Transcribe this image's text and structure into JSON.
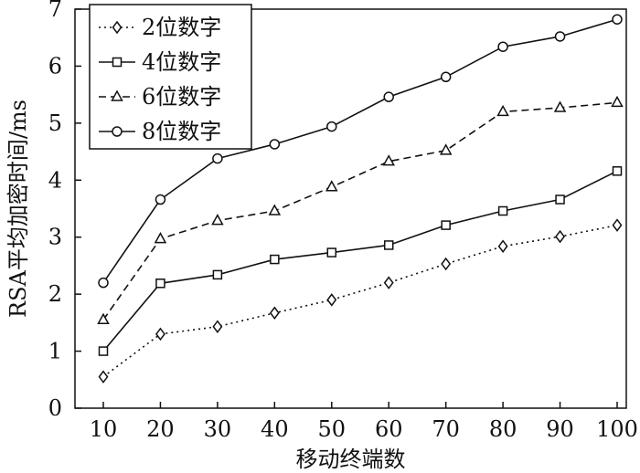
{
  "chart_data": {
    "type": "line",
    "xlabel": "移动终端数",
    "ylabel": "RSA平均加密时间/ms",
    "x": [
      10,
      20,
      30,
      40,
      50,
      60,
      70,
      80,
      90,
      100
    ],
    "xlim": [
      10,
      100
    ],
    "ylim": [
      0,
      7
    ],
    "xticks": [
      "10",
      "20",
      "30",
      "40",
      "50",
      "60",
      "70",
      "80",
      "90",
      "100"
    ],
    "yticks": [
      "0",
      "1",
      "2",
      "3",
      "4",
      "5",
      "6",
      "7"
    ],
    "grid": false,
    "legend_position": "top-left",
    "series": [
      {
        "name": "2位数字",
        "marker": "diamond",
        "line_style": "dotted",
        "values": [
          0.55,
          1.3,
          1.43,
          1.67,
          1.9,
          2.2,
          2.53,
          2.84,
          3.01,
          3.21
        ]
      },
      {
        "name": "4位数字",
        "marker": "square",
        "line_style": "solid",
        "values": [
          1.0,
          2.19,
          2.34,
          2.61,
          2.73,
          2.86,
          3.21,
          3.46,
          3.66,
          4.16
        ]
      },
      {
        "name": "6位数字",
        "marker": "triangle",
        "line_style": "dashed",
        "values": [
          1.55,
          2.97,
          3.29,
          3.46,
          3.88,
          4.33,
          4.52,
          5.2,
          5.27,
          5.36
        ]
      },
      {
        "name": "8位数字",
        "marker": "circle",
        "line_style": "solid",
        "values": [
          2.2,
          3.66,
          4.38,
          4.63,
          4.94,
          5.46,
          5.81,
          6.34,
          6.52,
          6.82
        ]
      }
    ]
  }
}
